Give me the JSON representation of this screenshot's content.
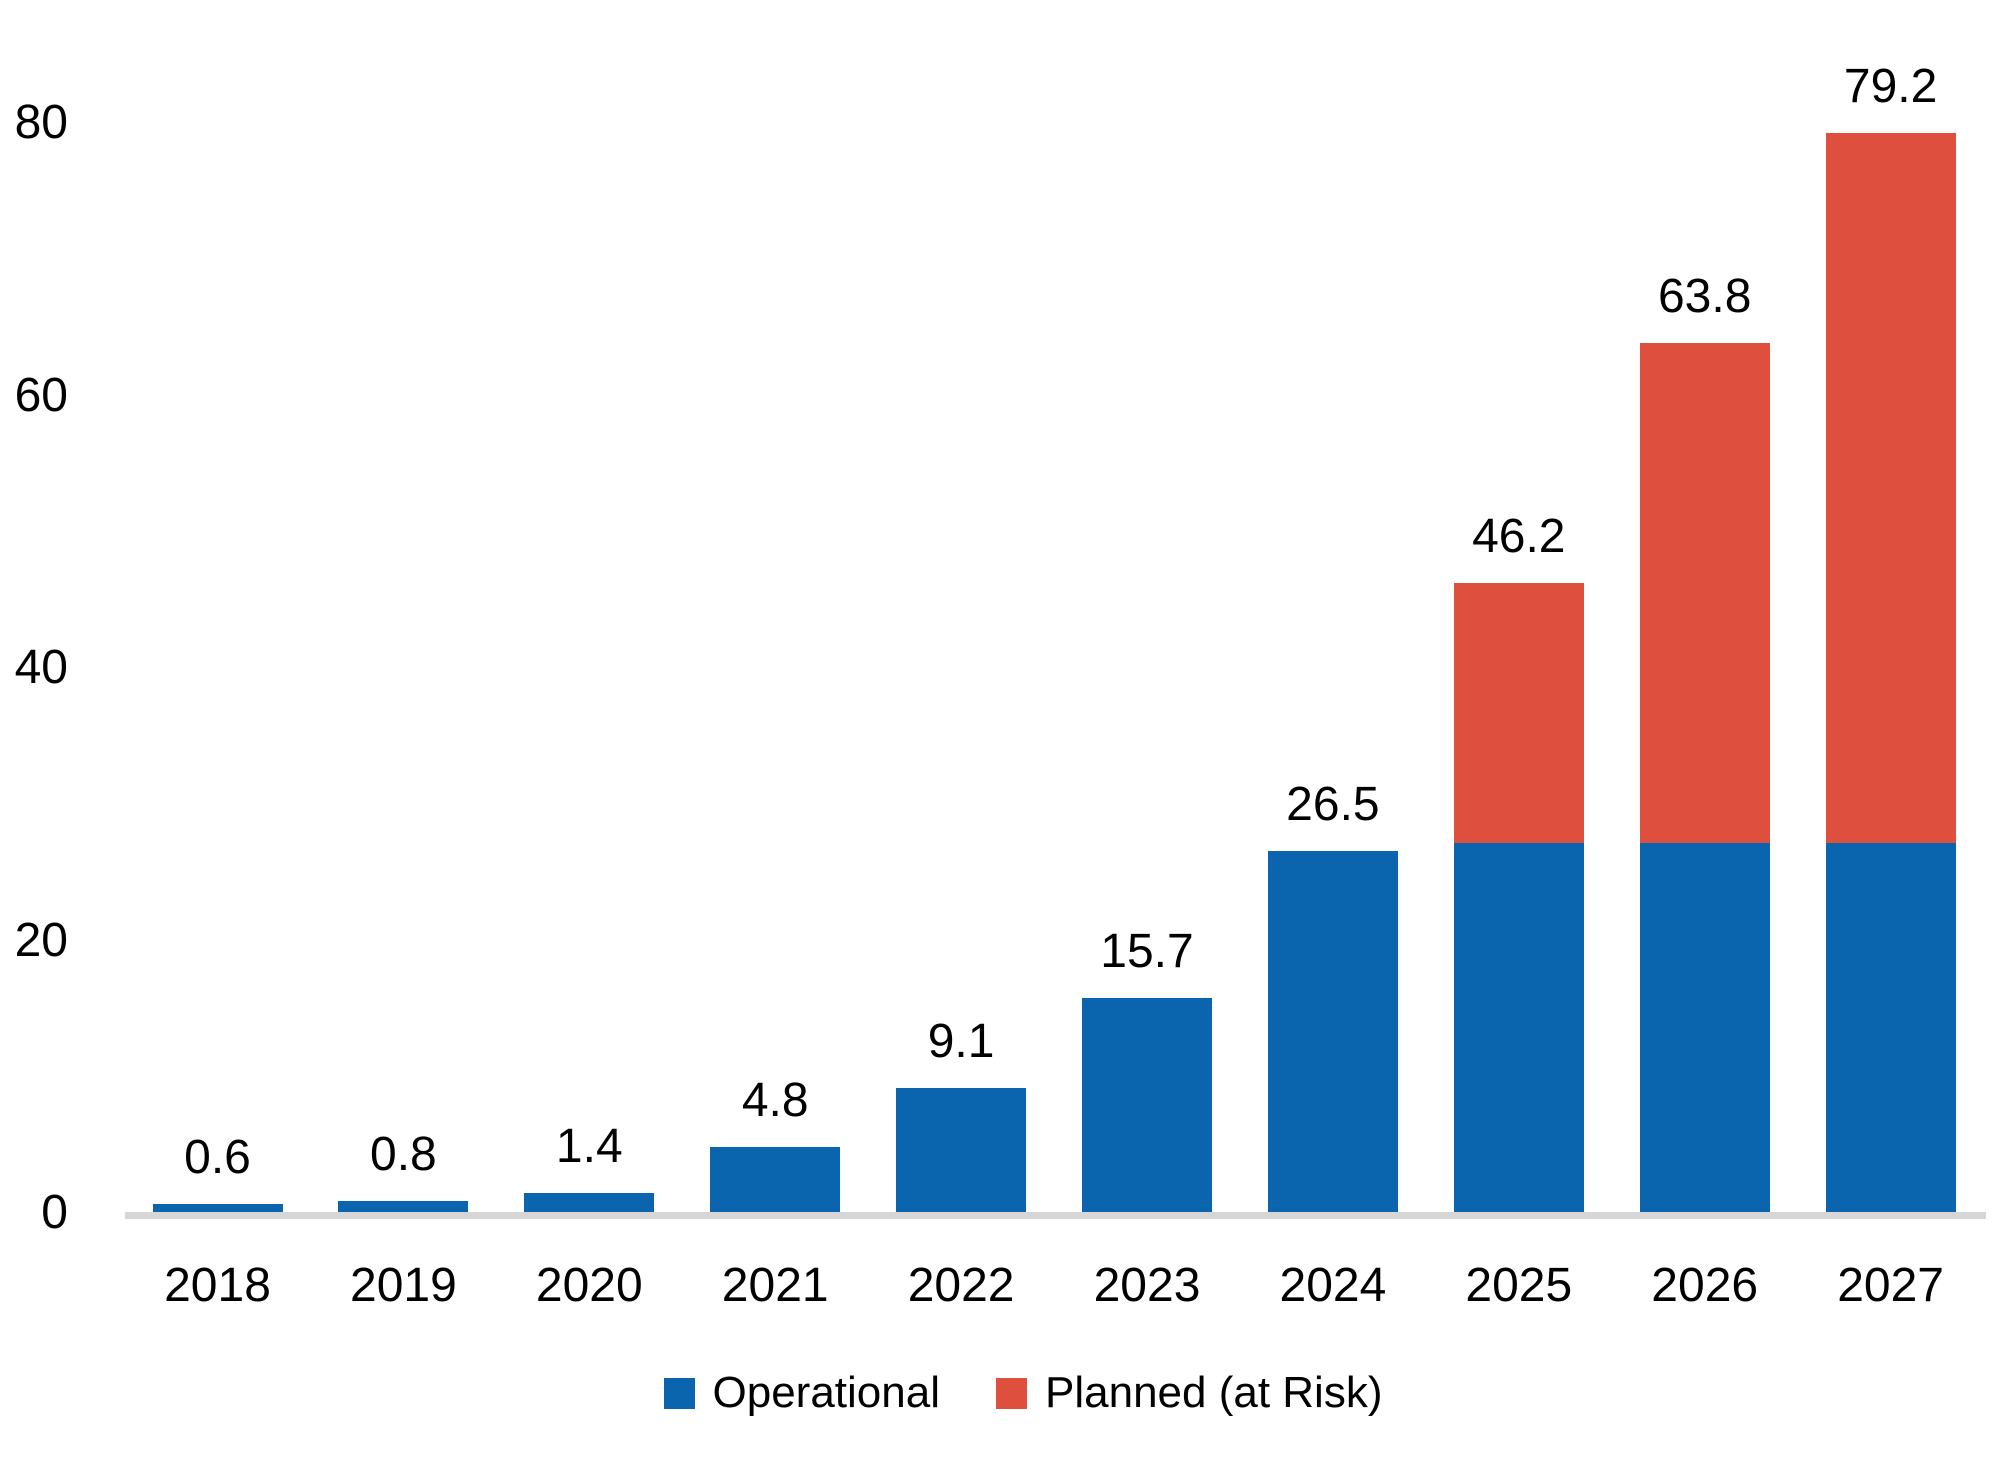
{
  "chart_data": {
    "type": "bar",
    "stacked": true,
    "title": "",
    "xlabel": "",
    "ylabel": "",
    "grid": false,
    "legend_position": "bottom",
    "categories": [
      "2018",
      "2019",
      "2020",
      "2021",
      "2022",
      "2023",
      "2024",
      "2025",
      "2026",
      "2027"
    ],
    "series": [
      {
        "name": "Operational",
        "color": "#0A64AE",
        "values": [
          0.6,
          0.8,
          1.4,
          4.8,
          9.1,
          15.7,
          26.5,
          27.1,
          27.1,
          27.1
        ]
      },
      {
        "name": "Planned (at Risk)",
        "color": "#DF4F3E",
        "values": [
          0,
          0,
          0,
          0,
          0,
          0,
          0,
          19.1,
          36.7,
          52.1
        ]
      }
    ],
    "totals": [
      0.6,
      0.8,
      1.4,
      4.8,
      9.1,
      15.7,
      26.5,
      46.2,
      63.8,
      79.2
    ],
    "total_labels": [
      "0.6",
      "0.8",
      "1.4",
      "4.8",
      "9.1",
      "15.7",
      "26.5",
      "46.2",
      "63.8",
      "79.2"
    ],
    "y_ticks": [
      0,
      20,
      40,
      60,
      80
    ],
    "ylim": [
      0,
      86
    ]
  },
  "legend": {
    "items": [
      {
        "label": "Operational",
        "color": "#0A64AE"
      },
      {
        "label": "Planned (at Risk)",
        "color": "#DF4F3E"
      }
    ]
  },
  "style": {
    "axis_line_color": "#D6D6D6",
    "text_color": "#000000",
    "background": "#FFFFFF"
  }
}
